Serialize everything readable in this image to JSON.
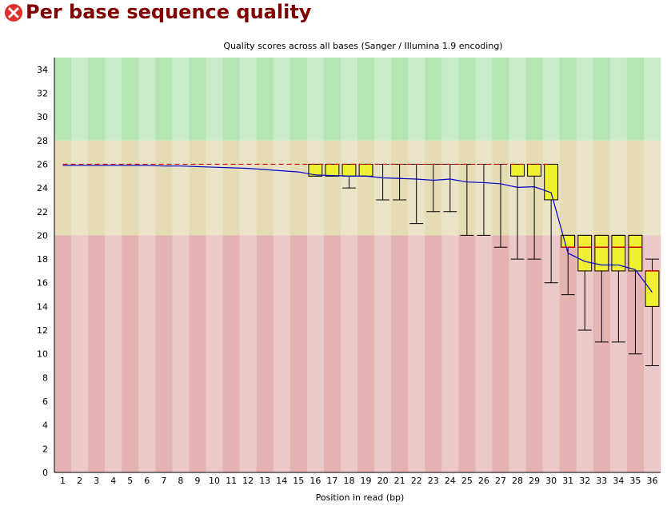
{
  "header": {
    "title": "Per base sequence quality",
    "status_icon": "fail-icon",
    "status_color": "#e02d2d"
  },
  "colors": {
    "good_dark": "#b3e6b3",
    "good_light": "#c9ebc9",
    "warn_dark": "#e6dcb3",
    "warn_light": "#ebe3c8",
    "poor_dark": "#e6b3b3",
    "poor_light": "#ebc9c9",
    "box_fill": "#f0f033",
    "median_line": "#cc0000",
    "mean_line": "#0000cc",
    "whisker": "#000000"
  },
  "chart_data": {
    "type": "boxplot",
    "title": "Quality scores across all bases (Sanger / Illumina 1.9 encoding)",
    "xlabel": "Position in read (bp)",
    "ylabel": "",
    "ylim": [
      0,
      35
    ],
    "yticks": [
      0,
      2,
      4,
      6,
      8,
      10,
      12,
      14,
      16,
      18,
      20,
      22,
      24,
      26,
      28,
      30,
      32,
      34
    ],
    "bands": [
      {
        "name": "good",
        "from": 28,
        "to": 35
      },
      {
        "name": "reasonable",
        "from": 20,
        "to": 28
      },
      {
        "name": "poor",
        "from": 0,
        "to": 20
      }
    ],
    "categories": [
      "1",
      "2",
      "3",
      "4",
      "5",
      "6",
      "7",
      "8",
      "9",
      "10",
      "11",
      "12",
      "13",
      "14",
      "15",
      "16",
      "17",
      "18",
      "19",
      "20",
      "21",
      "22",
      "23",
      "24",
      "25",
      "26",
      "27",
      "28",
      "29",
      "30",
      "31",
      "32",
      "33",
      "34",
      "35",
      "36"
    ],
    "median": [
      26,
      26,
      26,
      26,
      26,
      26,
      26,
      26,
      26,
      26,
      26,
      26,
      26,
      26,
      26,
      26,
      26,
      26,
      26,
      26,
      26,
      26,
      26,
      26,
      26,
      26,
      26,
      26,
      26,
      26,
      19,
      19,
      19,
      19,
      19,
      17
    ],
    "q1": [
      26,
      26,
      26,
      26,
      26,
      26,
      26,
      26,
      26,
      26,
      26,
      26,
      26,
      26,
      26,
      25,
      25,
      25,
      25,
      26,
      26,
      26,
      26,
      26,
      26,
      26,
      26,
      25,
      25,
      23,
      19,
      17,
      17,
      17,
      17,
      14
    ],
    "q3": [
      26,
      26,
      26,
      26,
      26,
      26,
      26,
      26,
      26,
      26,
      26,
      26,
      26,
      26,
      26,
      26,
      26,
      26,
      26,
      26,
      26,
      26,
      26,
      26,
      26,
      26,
      26,
      26,
      26,
      26,
      20,
      20,
      20,
      20,
      20,
      17
    ],
    "lower_whisker": [
      26,
      26,
      26,
      26,
      26,
      26,
      26,
      26,
      26,
      26,
      26,
      26,
      26,
      26,
      26,
      25,
      25,
      24,
      25,
      23,
      23,
      21,
      22,
      22,
      20,
      20,
      19,
      18,
      18,
      16,
      15,
      12,
      11,
      11,
      10,
      9
    ],
    "upper_whisker": [
      26,
      26,
      26,
      26,
      26,
      26,
      26,
      26,
      26,
      26,
      26,
      26,
      26,
      26,
      26,
      26,
      26,
      26,
      26,
      26,
      26,
      26,
      26,
      26,
      26,
      26,
      26,
      26,
      26,
      26,
      20,
      20,
      20,
      20,
      20,
      18
    ],
    "mean": [
      25.9,
      25.9,
      25.9,
      25.9,
      25.9,
      25.9,
      25.85,
      25.85,
      25.8,
      25.75,
      25.7,
      25.65,
      25.55,
      25.45,
      25.35,
      25.1,
      25.05,
      25.0,
      25.0,
      24.85,
      24.8,
      24.75,
      24.65,
      24.75,
      24.5,
      24.45,
      24.35,
      24.05,
      24.1,
      23.6,
      18.5,
      17.8,
      17.5,
      17.5,
      17.1,
      15.2
    ]
  }
}
